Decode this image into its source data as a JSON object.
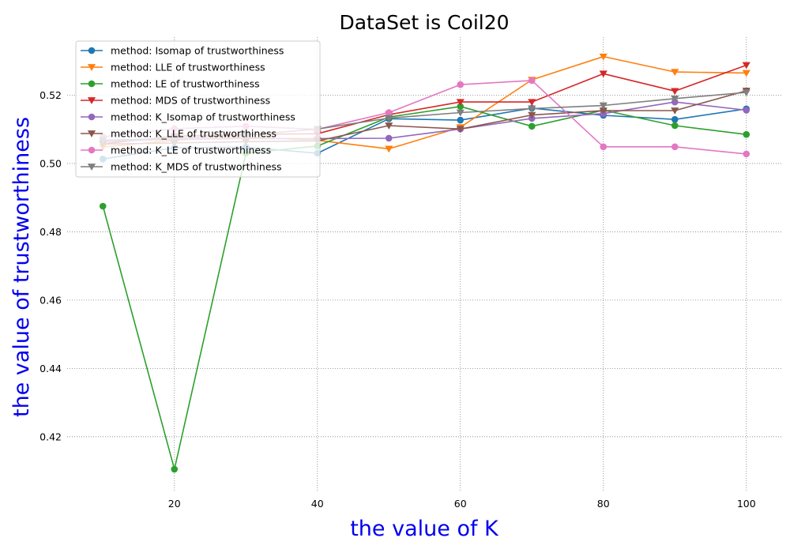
{
  "chart_data": {
    "type": "line",
    "title": "DataSet is Coil20",
    "xlabel": "the value of K",
    "ylabel": "the value of trustworthiness",
    "label_color": "#0000ee",
    "xlim": [
      5,
      105
    ],
    "ylim": [
      0.404,
      0.537
    ],
    "x_ticks": [
      20,
      40,
      60,
      80,
      100
    ],
    "y_ticks": [
      0.42,
      0.44,
      0.46,
      0.48,
      0.5,
      0.52
    ],
    "grid": true,
    "grid_style": "dotted",
    "legend_position": "top-left",
    "x": [
      10,
      20,
      30,
      40,
      50,
      60,
      70,
      80,
      90,
      100
    ],
    "series": [
      {
        "name": "method: Isomap of trustworthiness",
        "color": "#1f77b4",
        "marker": "circle",
        "values": [
          0.5013,
          0.5046,
          0.5048,
          0.503,
          0.5131,
          0.5127,
          0.5162,
          0.5141,
          0.5129,
          0.516
        ]
      },
      {
        "name": "method: LLE of trustworthiness",
        "color": "#ff7f0e",
        "marker": "triangle-down",
        "values": [
          0.5048,
          0.5068,
          0.5078,
          0.5068,
          0.5043,
          0.5106,
          0.5245,
          0.5313,
          0.5268,
          0.5265
        ]
      },
      {
        "name": "method: LE of trustworthiness",
        "color": "#2ca02c",
        "marker": "circle",
        "values": [
          0.4875,
          0.4105,
          0.503,
          0.5051,
          0.5136,
          0.5167,
          0.5109,
          0.5156,
          0.5111,
          0.5085
        ]
      },
      {
        "name": "method: MDS of trustworthiness",
        "color": "#d62728",
        "marker": "triangle-down",
        "values": [
          0.5058,
          0.508,
          0.5085,
          0.5087,
          0.5143,
          0.518,
          0.518,
          0.5263,
          0.5212,
          0.5288
        ]
      },
      {
        "name": "method: K_Isomap of trustworthiness",
        "color": "#9467bd",
        "marker": "circle",
        "values": [
          0.5065,
          0.5071,
          0.5073,
          0.5073,
          0.5074,
          0.5101,
          0.5132,
          0.5146,
          0.518,
          0.5156
        ]
      },
      {
        "name": "method: K_LLE of trustworthiness",
        "color": "#8c564b",
        "marker": "triangle-down",
        "values": [
          0.5057,
          0.506,
          0.5064,
          0.5066,
          0.5111,
          0.5101,
          0.5142,
          0.5155,
          0.5155,
          0.5213
        ]
      },
      {
        "name": "method: K_LE of trustworthiness",
        "color": "#e377c2",
        "marker": "circle",
        "values": [
          0.5078,
          0.5102,
          0.5109,
          0.51,
          0.5149,
          0.5231,
          0.5243,
          0.5049,
          0.5049,
          0.5028
        ]
      },
      {
        "name": "method: K_MDS of trustworthiness",
        "color": "#7f7f7f",
        "marker": "triangle-down",
        "values": [
          0.5068,
          0.5074,
          0.5083,
          0.5101,
          0.5133,
          0.5149,
          0.5161,
          0.517,
          0.519,
          0.5208
        ]
      }
    ]
  }
}
